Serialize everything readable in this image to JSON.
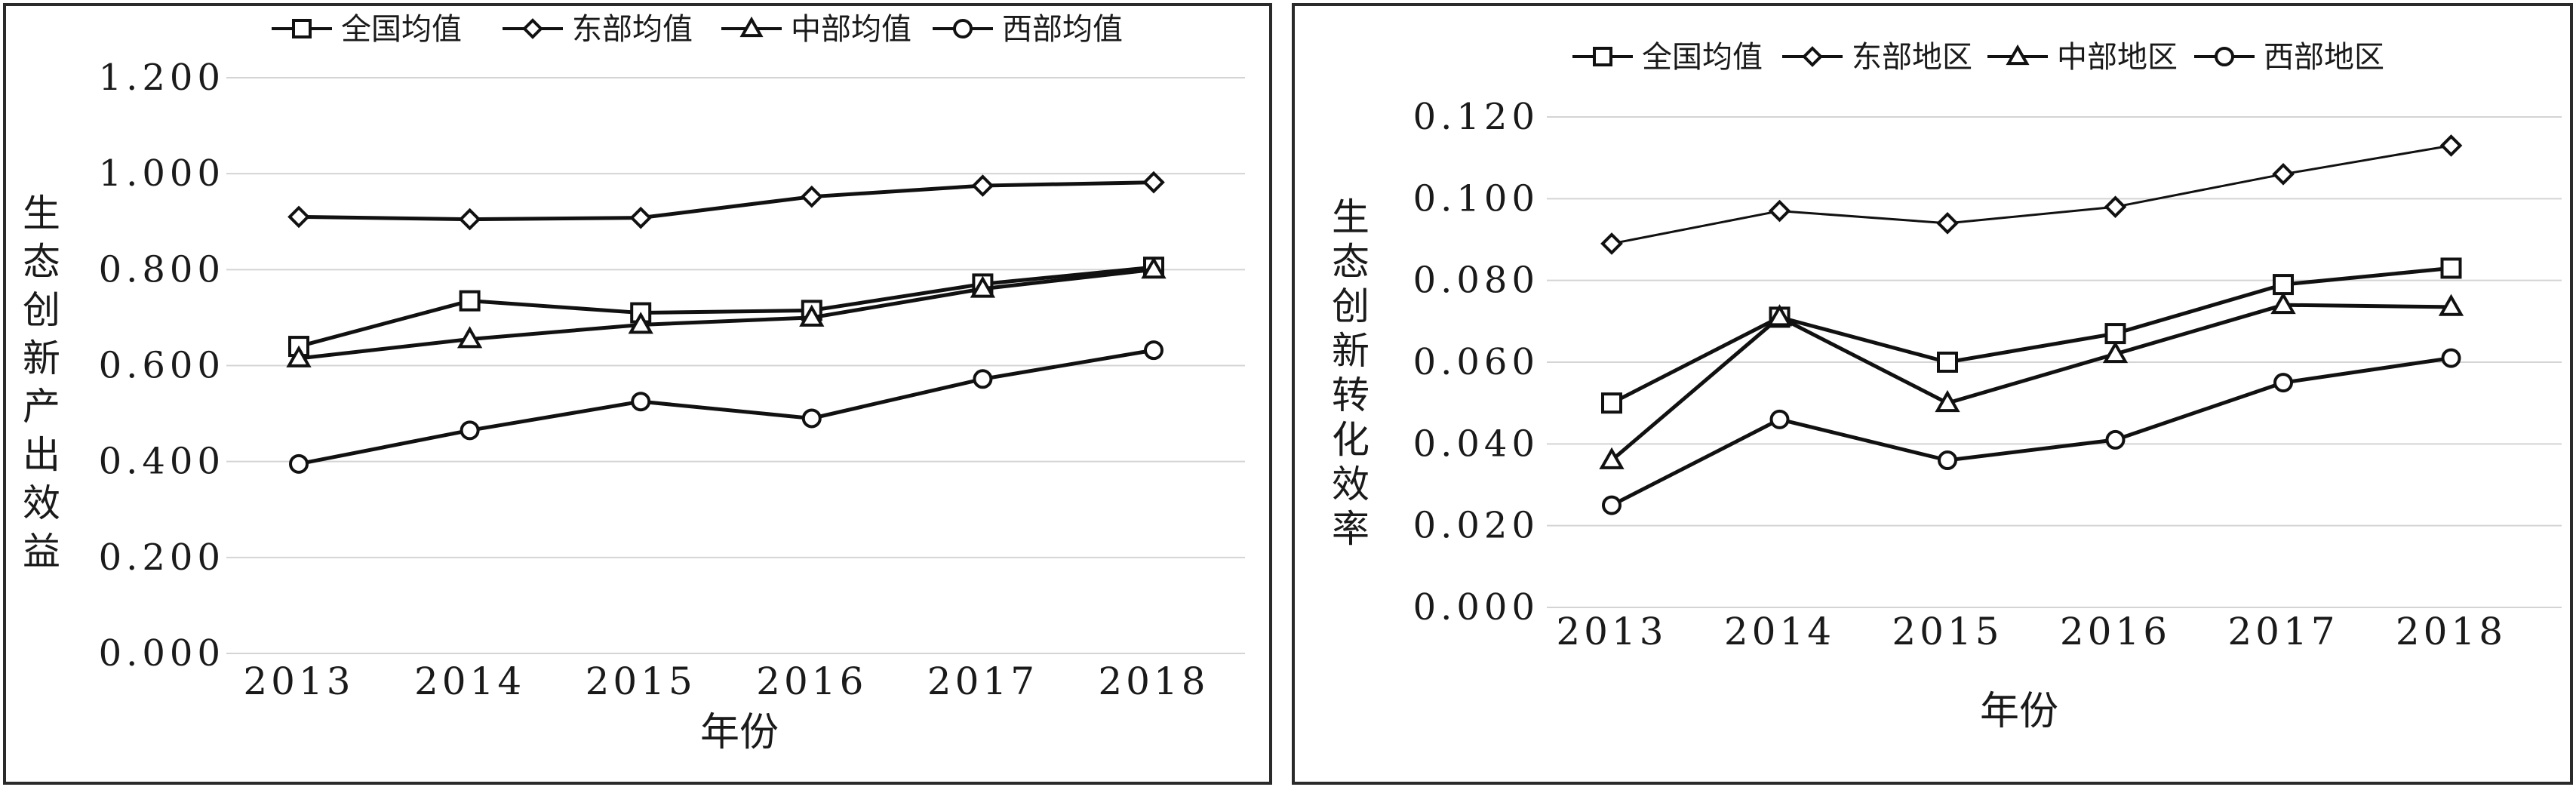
{
  "chart_data": [
    {
      "type": "line",
      "xlabel": "年份",
      "ylabel": "生态创新产出效益",
      "categories": [
        "2013",
        "2014",
        "2015",
        "2016",
        "2017",
        "2018"
      ],
      "ylim": [
        0,
        1.2
      ],
      "yticks": [
        "0.000",
        "0.200",
        "0.400",
        "0.600",
        "0.800",
        "1.000",
        "1.200"
      ],
      "legend_position": "top",
      "series": [
        {
          "name": "全国均值",
          "marker": "square",
          "values": [
            0.64,
            0.735,
            0.71,
            0.715,
            0.77,
            0.805
          ]
        },
        {
          "name": "东部均值",
          "marker": "diamond",
          "values": [
            0.91,
            0.905,
            0.908,
            0.952,
            0.975,
            0.982
          ]
        },
        {
          "name": "中部均值",
          "marker": "triangle",
          "values": [
            0.615,
            0.655,
            0.685,
            0.7,
            0.76,
            0.8
          ]
        },
        {
          "name": "西部均值",
          "marker": "circle",
          "values": [
            0.395,
            0.465,
            0.525,
            0.49,
            0.572,
            0.632
          ]
        }
      ]
    },
    {
      "type": "line",
      "xlabel": "年份",
      "ylabel": "生态创新转化效率",
      "categories": [
        "2013",
        "2014",
        "2015",
        "2016",
        "2017",
        "2018"
      ],
      "ylim": [
        0,
        0.12
      ],
      "yticks": [
        "0.000",
        "0.020",
        "0.040",
        "0.060",
        "0.080",
        "0.100",
        "0.120"
      ],
      "legend_position": "top",
      "series": [
        {
          "name": "全国均值",
          "marker": "square",
          "values": [
            0.05,
            0.071,
            0.06,
            0.067,
            0.079,
            0.083
          ]
        },
        {
          "name": "东部地区",
          "marker": "diamond",
          "values": [
            0.089,
            0.097,
            0.094,
            0.098,
            0.106,
            0.113
          ]
        },
        {
          "name": "中部地区",
          "marker": "triangle",
          "values": [
            0.036,
            0.071,
            0.05,
            0.062,
            0.074,
            0.0735
          ]
        },
        {
          "name": "西部地区",
          "marker": "circle",
          "values": [
            0.025,
            0.046,
            0.036,
            0.041,
            0.055,
            0.061
          ]
        }
      ]
    }
  ]
}
